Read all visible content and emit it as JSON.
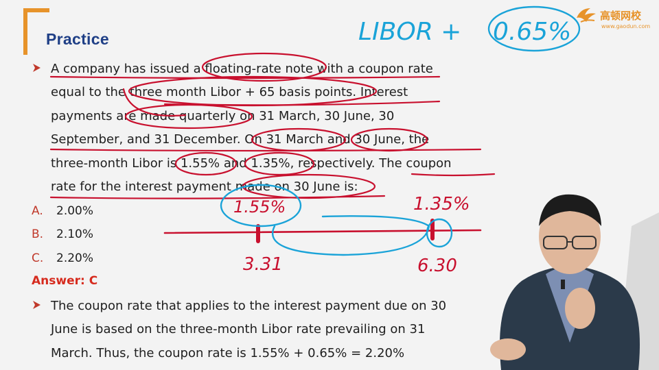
{
  "slide": {
    "title": "Practice",
    "logo": {
      "name": "高顿网校",
      "url": "www.gaodun.com"
    },
    "question_lines": [
      "A company has issued a floating-rate note with a coupon rate",
      "equal to the three month Libor + 65 basis points. Interest",
      "payments are made quarterly on 31 March, 30 June, 30",
      "September, and 31 December. On 31 March and 30 June, the",
      "three-month Libor is 1.55% and 1.35%, respectively. The coupon",
      "rate for the interest payment made on 30 June is:"
    ],
    "options": [
      {
        "letter": "A.",
        "value": "2.00%"
      },
      {
        "letter": "B.",
        "value": "2.10%"
      },
      {
        "letter": "C.",
        "value": "2.20%"
      }
    ],
    "answer": "Answer: C",
    "explanation_lines": [
      "The coupon rate that applies to the interest payment due on 30",
      "June is based on the three-month Libor rate prevailing on 31",
      "March. Thus, the coupon rate is 1.55% + 0.65% = 2.20%"
    ]
  },
  "annotations": {
    "top_note_a": "LIBOR +",
    "top_note_b": "0.65%",
    "rate_left": "1.55%",
    "rate_right": "1.35%",
    "date_left": "3.31",
    "date_right": "6.30"
  },
  "colors": {
    "title": "#1f3f86",
    "bracket": "#e7932a",
    "bullet": "#c0392b",
    "answer": "#d62b1e",
    "ink_red": "#c8102e",
    "ink_blue": "#1aa3d8"
  }
}
